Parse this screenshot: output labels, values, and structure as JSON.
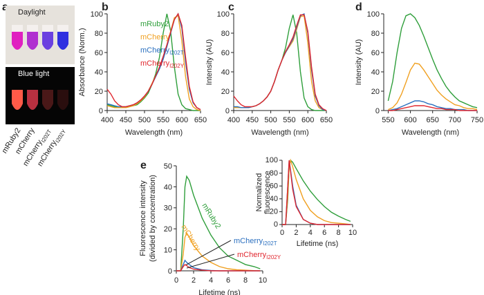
{
  "figure": {
    "panel": "a",
    "photos": [
      {
        "label": "Daylight"
      },
      {
        "label": "Blue light"
      }
    ],
    "samples": [
      {
        "name": "mRuby2"
      },
      {
        "name": "mCherry"
      },
      {
        "name": "mCherry",
        "subscript": "I202T"
      },
      {
        "name": "mCherry",
        "subscript": "I202Y"
      }
    ]
  },
  "chart_data": [
    {
      "type": "line",
      "panel": "b",
      "xlabel": "Wavelength (nm)",
      "ylabel": [
        "Absorbance (Norm.)"
      ],
      "legend": true,
      "x": [
        400,
        410,
        420,
        430,
        440,
        450,
        460,
        470,
        480,
        490,
        500,
        510,
        520,
        530,
        540,
        550,
        560,
        570,
        580,
        590,
        600,
        610,
        620,
        630,
        640,
        650
      ],
      "xlim": [
        400,
        650
      ],
      "xticks": [
        400,
        450,
        500,
        550,
        600,
        650
      ],
      "ylim": [
        0,
        100
      ],
      "yticks": [
        0,
        20,
        40,
        60,
        80,
        100
      ],
      "series": [
        {
          "name": "mRuby2",
          "color": "#2e9e3a",
          "values": [
            6,
            5,
            4,
            3,
            3,
            3,
            4,
            5,
            6,
            9,
            13,
            18,
            27,
            38,
            55,
            80,
            100,
            82,
            45,
            17,
            6,
            2,
            1,
            0,
            0,
            0
          ]
        },
        {
          "name": "mCherry",
          "color": "#f0a020",
          "values": [
            5,
            4,
            3,
            3,
            3,
            3,
            4,
            5,
            7,
            10,
            14,
            20,
            28,
            36,
            44,
            55,
            68,
            82,
            96,
            98,
            72,
            35,
            12,
            4,
            1,
            0
          ]
        },
        {
          "name": "mCherry",
          "subscript": "I202T",
          "color": "#2a6fbf",
          "values": [
            7,
            6,
            5,
            4,
            4,
            4,
            5,
            6,
            8,
            11,
            15,
            20,
            27,
            35,
            43,
            53,
            66,
            80,
            94,
            100,
            85,
            50,
            22,
            8,
            3,
            1
          ]
        },
        {
          "name": "mCherry",
          "subscript": "I202Y",
          "color": "#e0262e",
          "values": [
            22,
            17,
            10,
            6,
            4,
            4,
            5,
            6,
            8,
            11,
            15,
            20,
            27,
            36,
            45,
            56,
            68,
            81,
            94,
            100,
            88,
            55,
            25,
            9,
            3,
            1
          ]
        }
      ]
    },
    {
      "type": "line",
      "panel": "c",
      "xlabel": "Wavelength (nm)",
      "ylabel": [
        "Intensity (AU)"
      ],
      "legend": false,
      "x": [
        400,
        410,
        420,
        430,
        440,
        450,
        460,
        470,
        480,
        490,
        500,
        510,
        520,
        530,
        540,
        550,
        560,
        570,
        580,
        590,
        600,
        610,
        620,
        630,
        640,
        650
      ],
      "xlim": [
        400,
        650
      ],
      "xticks": [
        400,
        450,
        500,
        550,
        600,
        650
      ],
      "ylim": [
        0,
        100
      ],
      "yticks": [
        0,
        20,
        40,
        60,
        80,
        100
      ],
      "series": [
        {
          "color": "#2e9e3a",
          "values": [
            3,
            3,
            3,
            3,
            3,
            4,
            5,
            7,
            10,
            14,
            20,
            30,
            42,
            52,
            65,
            85,
            99,
            80,
            40,
            13,
            4,
            1,
            0,
            0,
            0,
            0
          ]
        },
        {
          "color": "#f0a020",
          "values": [
            3,
            3,
            3,
            3,
            3,
            4,
            5,
            7,
            10,
            14,
            20,
            30,
            42,
            52,
            60,
            66,
            72,
            84,
            97,
            98,
            70,
            30,
            10,
            3,
            1,
            0
          ]
        },
        {
          "color": "#2a6fbf",
          "values": [
            4,
            4,
            3,
            3,
            3,
            4,
            5,
            7,
            10,
            14,
            20,
            30,
            42,
            52,
            60,
            67,
            74,
            86,
            98,
            100,
            80,
            42,
            15,
            5,
            1,
            0
          ]
        },
        {
          "color": "#e0262e",
          "values": [
            15,
            10,
            6,
            4,
            4,
            4,
            5,
            7,
            10,
            14,
            20,
            30,
            42,
            52,
            61,
            68,
            76,
            88,
            99,
            99,
            82,
            45,
            17,
            6,
            2,
            0
          ]
        }
      ]
    },
    {
      "type": "line",
      "panel": "d",
      "xlabel": "Wavelength (nm)",
      "ylabel": [
        "Intensity (AU)"
      ],
      "legend": false,
      "x": [
        550,
        560,
        570,
        580,
        590,
        600,
        610,
        620,
        630,
        640,
        650,
        660,
        670,
        680,
        690,
        700,
        710,
        720,
        730,
        740,
        750
      ],
      "xlim": [
        540,
        750
      ],
      "xticks": [
        550,
        600,
        650,
        700,
        750
      ],
      "ylim": [
        0,
        100
      ],
      "yticks": [
        0,
        20,
        40,
        60,
        80,
        100
      ],
      "series": [
        {
          "color": "#2e9e3a",
          "values": [
            10,
            30,
            60,
            85,
            98,
            100,
            96,
            88,
            77,
            65,
            53,
            42,
            33,
            25,
            19,
            14,
            10,
            8,
            6,
            4,
            3
          ]
        },
        {
          "color": "#f0a020",
          "values": [
            1,
            3,
            8,
            17,
            29,
            42,
            49,
            48,
            42,
            35,
            28,
            21,
            16,
            12,
            9,
            6,
            5,
            3,
            2,
            2,
            1
          ]
        },
        {
          "color": "#2a6fbf",
          "values": [
            0,
            1,
            2,
            4,
            6,
            8,
            10,
            10,
            9,
            7,
            6,
            4,
            3,
            2,
            2,
            1,
            1,
            1,
            0,
            0,
            0
          ]
        },
        {
          "color": "#e0262e",
          "values": [
            0,
            0,
            1,
            2,
            3,
            4,
            5,
            5,
            5,
            4,
            3,
            2,
            2,
            1,
            1,
            1,
            0,
            0,
            0,
            0,
            0
          ]
        }
      ]
    },
    {
      "type": "line",
      "panel": "e",
      "xlabel": "Lifetime (ns)",
      "ylabel": [
        "Fluorescence intensity",
        "(divided by concentration)"
      ],
      "legend": false,
      "labels": "on-curve",
      "x": [
        0,
        0.5,
        0.8,
        1,
        1.2,
        1.5,
        2,
        3,
        4,
        5,
        6,
        7,
        8,
        9,
        9.7
      ],
      "xlim": [
        0,
        10
      ],
      "xticks": [
        0,
        2,
        4,
        6,
        8,
        10
      ],
      "ylim": [
        0,
        50
      ],
      "yticks": [
        0,
        10,
        20,
        30,
        40,
        50
      ],
      "series": [
        {
          "name": "mRuby2",
          "color": "#2e9e3a",
          "values": [
            0,
            0,
            20,
            40,
            45,
            43,
            36,
            25,
            17,
            11,
            7,
            5,
            3,
            2,
            1
          ]
        },
        {
          "name": "mCherry",
          "color": "#f0a020",
          "values": [
            0,
            0,
            8,
            16,
            18,
            16,
            12,
            7,
            4,
            2,
            1,
            0.5,
            0.3,
            0.1,
            0
          ]
        },
        {
          "name": "mCherry",
          "subscript": "I202T",
          "color": "#2a6fbf",
          "values": [
            0,
            0,
            3,
            5,
            4,
            3,
            1.5,
            0.5,
            0.2,
            0,
            0,
            0,
            0,
            0,
            0
          ]
        },
        {
          "name": "mCherry",
          "subscript": "I202Y",
          "color": "#e0262e",
          "values": [
            0,
            0,
            2,
            3,
            2.5,
            1.5,
            0.8,
            0.3,
            0,
            0,
            0,
            0,
            0,
            0,
            0
          ]
        }
      ]
    },
    {
      "type": "line",
      "xlabel": "Lifetime (ns)",
      "ylabel": [
        "Normalized",
        "fluorescence"
      ],
      "legend": false,
      "x": [
        0,
        0.5,
        0.8,
        1,
        1.2,
        1.5,
        2,
        3,
        4,
        5,
        6,
        7,
        8,
        9,
        9.7
      ],
      "xlim": [
        0,
        10
      ],
      "xticks": [
        0,
        2,
        4,
        6,
        8,
        10
      ],
      "ylim": [
        0,
        100
      ],
      "yticks": [
        0,
        20,
        40,
        60,
        80,
        100
      ],
      "series": [
        {
          "color": "#2e9e3a",
          "values": [
            0,
            0,
            40,
            90,
            100,
            97,
            87,
            68,
            52,
            39,
            28,
            19,
            13,
            8,
            5
          ]
        },
        {
          "color": "#f0a020",
          "values": [
            0,
            0,
            45,
            90,
            100,
            90,
            70,
            40,
            22,
            12,
            6,
            3,
            2,
            1,
            0
          ]
        },
        {
          "color": "#2a6fbf",
          "values": [
            0,
            0,
            60,
            100,
            85,
            60,
            30,
            8,
            2,
            0,
            0,
            0,
            0,
            0,
            0
          ]
        },
        {
          "color": "#e0262e",
          "values": [
            0,
            0,
            60,
            100,
            83,
            55,
            28,
            8,
            2,
            0,
            0,
            0,
            0,
            0,
            0
          ]
        }
      ]
    }
  ]
}
